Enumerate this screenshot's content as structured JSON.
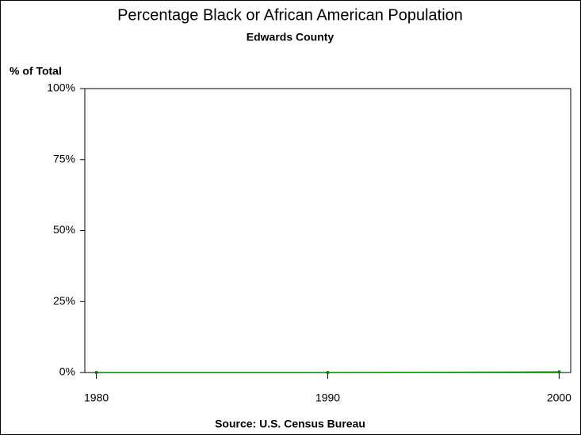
{
  "chart_data": {
    "type": "line",
    "title": "Percentage Black or African American Population",
    "subtitle": "Edwards County",
    "y_label": "% of Total",
    "source": "Source: U.S. Census Bureau",
    "x": [
      1980,
      1990,
      2000
    ],
    "xlim": [
      1979.5,
      2000.5
    ],
    "xticks": [
      1980,
      1990,
      2000
    ],
    "series": [
      {
        "color": "#008000",
        "values": [
          0,
          0,
          0.2
        ]
      }
    ],
    "ylim": [
      0,
      100
    ],
    "yticks": [
      {
        "value": 0,
        "label": "0%"
      },
      {
        "value": 25,
        "label": "25%"
      },
      {
        "value": 50,
        "label": "50%"
      },
      {
        "value": 75,
        "label": "75%"
      },
      {
        "value": 100,
        "label": "100%"
      }
    ]
  }
}
